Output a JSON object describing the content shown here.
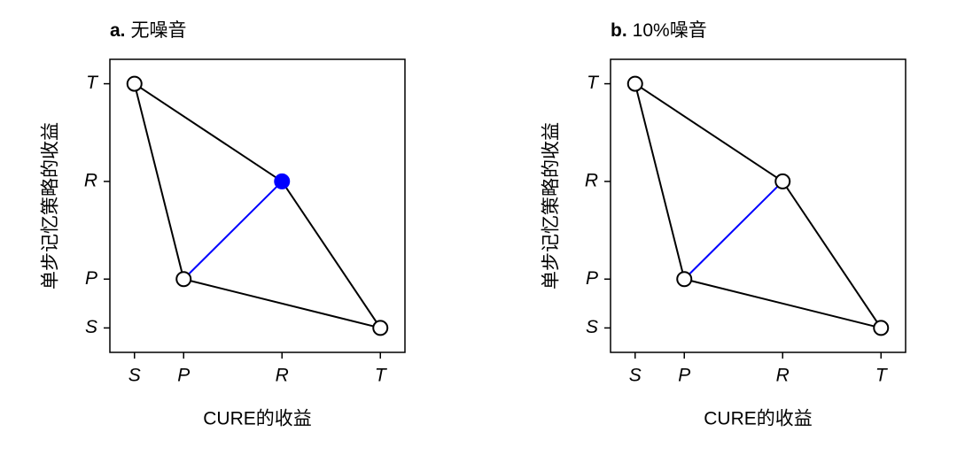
{
  "chart_data": [
    {
      "type": "scatter",
      "panel_label": "a.",
      "title": "无噪音",
      "xlabel": "CURE的收益",
      "ylabel": "单步记忆策略的收益",
      "xlim": [
        -0.5,
        5.5
      ],
      "ylim": [
        -0.5,
        5.5
      ],
      "xticks": [
        {
          "value": 0,
          "label": "S"
        },
        {
          "value": 1,
          "label": "P"
        },
        {
          "value": 3,
          "label": "R"
        },
        {
          "value": 5,
          "label": "T"
        }
      ],
      "yticks": [
        {
          "value": 0,
          "label": "S"
        },
        {
          "value": 1,
          "label": "P"
        },
        {
          "value": 3,
          "label": "R"
        },
        {
          "value": 5,
          "label": "T"
        }
      ],
      "x": [
        0,
        1,
        3,
        5
      ],
      "values": [
        5,
        1,
        3,
        0
      ],
      "marker_colors": [
        "#ffffff",
        "#ffffff",
        "#0000ff",
        "#ffffff"
      ],
      "outline": {
        "x": [
          0,
          3,
          5,
          1,
          0
        ],
        "values": [
          5,
          3,
          0,
          1,
          5
        ],
        "color": "#000000"
      },
      "diagonal": {
        "x": [
          1,
          3
        ],
        "values": [
          1,
          3
        ],
        "color": "#0000ff"
      }
    },
    {
      "type": "scatter",
      "panel_label": "b.",
      "title": "10%噪音",
      "xlabel": "CURE的收益",
      "ylabel": "单步记忆策略的收益",
      "xlim": [
        -0.5,
        5.5
      ],
      "ylim": [
        -0.5,
        5.5
      ],
      "xticks": [
        {
          "value": 0,
          "label": "S"
        },
        {
          "value": 1,
          "label": "P"
        },
        {
          "value": 3,
          "label": "R"
        },
        {
          "value": 5,
          "label": "T"
        }
      ],
      "yticks": [
        {
          "value": 0,
          "label": "S"
        },
        {
          "value": 1,
          "label": "P"
        },
        {
          "value": 3,
          "label": "R"
        },
        {
          "value": 5,
          "label": "T"
        }
      ],
      "x": [
        0,
        1,
        3,
        5
      ],
      "values": [
        5,
        1,
        3,
        0
      ],
      "marker_colors": [
        "#ffffff",
        "#ffffff",
        "#ffffff",
        "#ffffff"
      ],
      "outline": {
        "x": [
          0,
          3,
          5,
          1,
          0
        ],
        "values": [
          5,
          3,
          0,
          1,
          5
        ],
        "color": "#000000"
      },
      "diagonal": {
        "x": [
          1,
          3
        ],
        "values": [
          1,
          3
        ],
        "color": "#0000ff"
      }
    }
  ]
}
